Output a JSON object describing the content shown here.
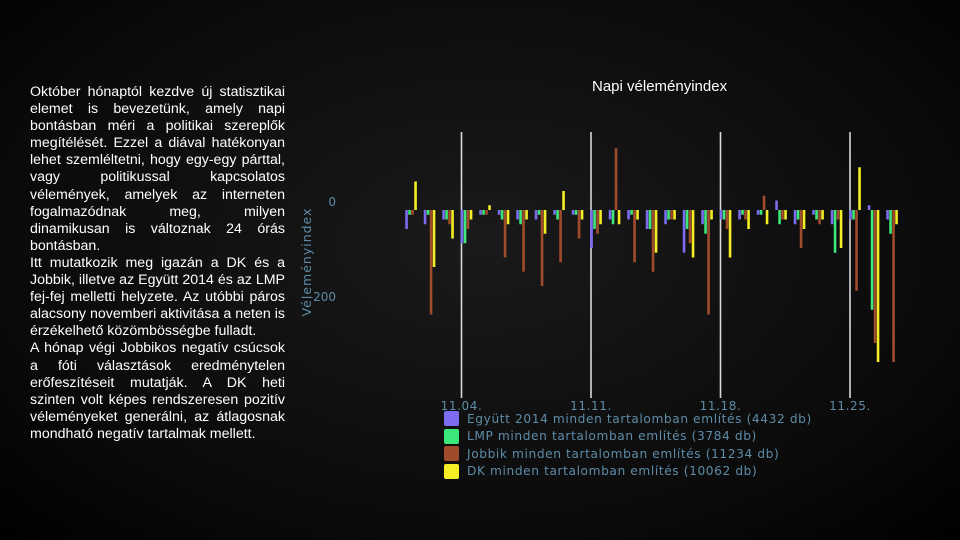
{
  "text": {
    "paragraphs": [
      "Október hónaptól kezdve új statisztikai elemet is bevezetünk, amely napi bontásban méri a politikai szereplők megítélését. Ezzel a diával hatékonyan lehet szemléltetni, hogy egy-egy párttal, vagy politikussal kapcsolatos vélemények, amelyek az interneten fogalmazódnak meg, milyen dinamikusan is változnak 24 órás bontásban.",
      "Itt mutatkozik meg igazán a DK és a Jobbik, illetve az Együtt 2014 és az LMP fej-fej melletti helyzete. Az utóbbi páros alacsony novemberi aktivitása a neten is érzékelhető közömbösségbe fulladt.",
      "A hónap végi Jobbikos negatív csúcsok a fóti választások eredménytelen erőfeszítéseit mutatják. A DK heti szinten volt képes rendszeresen pozitív véleményeket generálni, az átlagosnak mondható negatív tartalmak mellett."
    ]
  },
  "chart_data": {
    "type": "bar",
    "title": "Napi véleményindex",
    "ylabel": "Véleményindex",
    "yticks": [
      0,
      -200
    ],
    "ylim": [
      -570,
      230
    ],
    "xtick_labels": [
      "11.04.",
      "11.11.",
      "11.18.",
      "11.25."
    ],
    "xtick_positions": [
      3,
      10,
      17,
      24
    ],
    "x": [
      1,
      2,
      3,
      4,
      5,
      6,
      7,
      8,
      9,
      10,
      11,
      12,
      13,
      14,
      15,
      16,
      17,
      18,
      19,
      20,
      21,
      22,
      23,
      24,
      25,
      26,
      27
    ],
    "series": [
      {
        "name": "Együtt 2014 minden tartalomban említés (4432 db)",
        "color": "#7b6cf0",
        "values": [
          -40,
          -30,
          -20,
          -70,
          -10,
          -10,
          -20,
          -20,
          -10,
          -10,
          -80,
          -20,
          -20,
          -40,
          -30,
          -90,
          -30,
          -20,
          -20,
          -10,
          20,
          -30,
          -10,
          -30,
          -20,
          10,
          -20
        ]
      },
      {
        "name": "LMP minden tartalomban említés (3784 db)",
        "color": "#3de87a",
        "values": [
          -10,
          -10,
          -20,
          -70,
          -10,
          -20,
          -30,
          -10,
          -20,
          -10,
          -40,
          -30,
          -10,
          -40,
          -20,
          -40,
          -50,
          -20,
          -10,
          -10,
          -30,
          -20,
          -20,
          -90,
          -20,
          -210,
          -50
        ]
      },
      {
        "name": "Jobbik minden tartalomban említés (11234 db)",
        "color": "#a04c2c",
        "values": [
          -10,
          -220,
          -30,
          -40,
          -10,
          -100,
          -130,
          -160,
          -110,
          -60,
          -50,
          130,
          -110,
          -130,
          -20,
          -70,
          -220,
          -40,
          -20,
          30,
          -20,
          -80,
          -30,
          -20,
          -170,
          -280,
          -320
        ]
      },
      {
        "name": "DK minden tartalomban említés (10062 db)",
        "color": "#f6ee25",
        "values": [
          60,
          -120,
          -60,
          -20,
          10,
          -30,
          -20,
          -50,
          40,
          -20,
          -30,
          -30,
          -20,
          -90,
          -20,
          -100,
          -20,
          -100,
          -40,
          -30,
          -20,
          -40,
          -20,
          -80,
          90,
          -320,
          -30
        ]
      }
    ],
    "grid": "vertical lines at x ticks",
    "legend_position": "bottom"
  }
}
